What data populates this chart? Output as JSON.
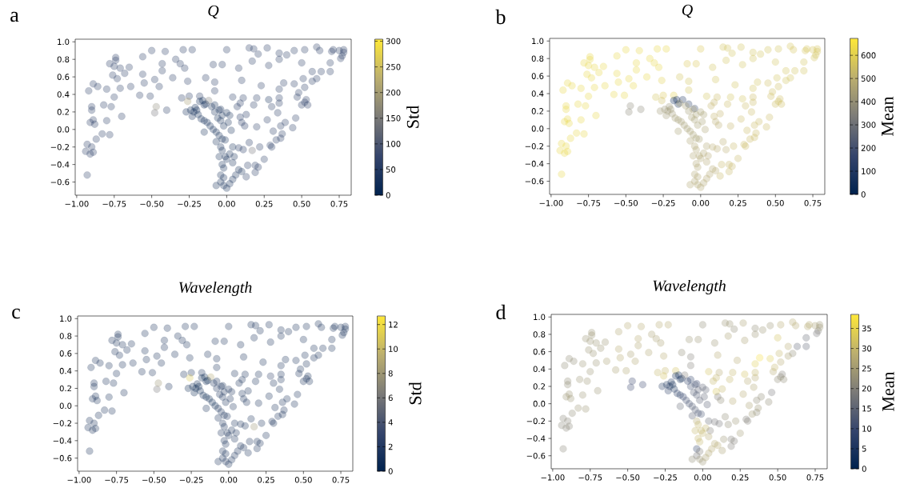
{
  "chart_data": [
    {
      "type": "scatter",
      "title": "Q",
      "annotations": [
        "a"
      ],
      "clabel": "Std",
      "marker": "circle",
      "xlim": [
        -1.01,
        0.83
      ],
      "ylim": [
        -0.75,
        1.03
      ],
      "xticks": [
        {
          "value": -1.0,
          "label": "−1.00"
        },
        {
          "value": -0.75,
          "label": "−0.75"
        },
        {
          "value": -0.5,
          "label": "−0.50"
        },
        {
          "value": -0.25,
          "label": "−0.25"
        },
        {
          "value": 0.0,
          "label": "0.00"
        },
        {
          "value": 0.25,
          "label": "0.25"
        },
        {
          "value": 0.5,
          "label": "0.50"
        },
        {
          "value": 0.75,
          "label": "0.75"
        }
      ],
      "yticks": [
        {
          "value": -0.6,
          "label": "−0.6"
        },
        {
          "value": -0.4,
          "label": "−0.4"
        },
        {
          "value": -0.2,
          "label": "−0.2"
        },
        {
          "value": 0.0,
          "label": "0.0"
        },
        {
          "value": 0.2,
          "label": "0.2"
        },
        {
          "value": 0.4,
          "label": "0.4"
        },
        {
          "value": 0.6,
          "label": "0.6"
        },
        {
          "value": 0.8,
          "label": "0.8"
        },
        {
          "value": 1.0,
          "label": "1.0"
        }
      ],
      "clim": [
        0,
        304
      ],
      "cticks": [
        0,
        50,
        100,
        150,
        200,
        250,
        300
      ],
      "x": [
        -0.93,
        -0.94,
        -0.93,
        -0.91,
        -0.9,
        -0.89,
        -0.87,
        -0.83,
        -0.78,
        -0.91,
        -0.89,
        -0.88,
        -0.8,
        -0.9,
        -0.9,
        -0.82,
        -0.77,
        -0.75,
        -0.7,
        -0.92,
        -0.89,
        -0.86,
        -0.8,
        -0.71,
        -0.64,
        -0.78,
        -0.74,
        -0.74,
        -0.75,
        -0.76,
        -0.73,
        -0.71,
        -0.68,
        -0.65,
        -0.58,
        -0.51,
        -0.48,
        -0.47,
        -0.4,
        -0.45,
        -0.55,
        -0.56,
        -0.48,
        -0.43,
        -0.36,
        -0.56,
        -0.5,
        -0.41,
        -0.34,
        -0.31,
        -0.29,
        -0.23,
        -0.28,
        -0.26,
        -0.43,
        -0.3,
        -0.25,
        -0.26,
        -0.18,
        -0.18,
        -0.16,
        -0.15,
        -0.12,
        -0.08,
        -0.04,
        -0.27,
        -0.24,
        -0.22,
        -0.2,
        -0.19,
        -0.21,
        -0.17,
        -0.15,
        -0.13,
        -0.11,
        -0.09,
        -0.07,
        -0.05,
        -0.03,
        -0.01,
        -0.23,
        -0.14,
        -0.1,
        -0.08,
        -0.05,
        -0.03,
        0,
        0.02,
        -0.06,
        -0.04,
        -0.02,
        0.01,
        0.03,
        -0.15,
        0.04,
        -0.07,
        -0.04,
        -0.03,
        -0.05,
        -0.01,
        0,
        0.02,
        0.05,
        0.04,
        -0.03,
        -0.02,
        -0.04,
        -0.02,
        -0.04,
        -0.07,
        -0.02,
        0,
        0.02,
        0.04,
        0.06,
        0.08,
        0.1,
        -0.08,
        -0.08,
        -0.09,
        -0.03,
        -0.14,
        0,
        0.04,
        0.07,
        0.09,
        0.09,
        0.11,
        0.1,
        0.08,
        0.13,
        0.12,
        0.1,
        0.08,
        0.11,
        0.15,
        0.17,
        0.13,
        0.14,
        0.19,
        0.19,
        0.21,
        0.25,
        0.22,
        0.2,
        0.18,
        0.2,
        0.23,
        0.15,
        0.18,
        0.21,
        0.17,
        0.27,
        0.28,
        0.28,
        0.27,
        0.3,
        0.31,
        0.29,
        0.3,
        0.33,
        0.36,
        0.37,
        0.36,
        0.39,
        0.34,
        0.35,
        0.35,
        0.35,
        0.38,
        0.35,
        0.35,
        0.4,
        0.45,
        0.44,
        0.46,
        0.47,
        0.48,
        0.45,
        0.5,
        0.52,
        0.53,
        0.54,
        0.52,
        0.51,
        0.5,
        0.52,
        0.57,
        0.6,
        0.57,
        0.63,
        0.6,
        0.62,
        0.69,
        0.69,
        0.7,
        0.71,
        0.75,
        0.76,
        0.77,
        0.78,
        0.78
      ],
      "values": [
        -0.52,
        -0.25,
        -0.17,
        -0.28,
        -0.2,
        -0.26,
        -0.11,
        -0.05,
        -0.06,
        0.08,
        0.11,
        0.06,
        0.1,
        0.22,
        0.26,
        0.28,
        0.26,
        0.37,
        0.15,
        0.44,
        0.52,
        0.49,
        0.46,
        0.47,
        0.49,
        0.75,
        0.82,
        0.79,
        0.72,
        0.62,
        0.58,
        0.7,
        0.64,
        0.71,
        0.39,
        0.38,
        0.19,
        0.26,
        0.22,
        0.49,
        0.53,
        0.63,
        0.57,
        0.67,
        0.59,
        0.83,
        0.9,
        0.89,
        0.8,
        0.75,
        0.91,
        0.91,
        0.7,
        0.55,
        0.75,
        0.36,
        0.38,
        0.32,
        0.38,
        0.32,
        0.33,
        0.28,
        0.33,
        0.28,
        0.23,
        0.2,
        0.22,
        0.2,
        0.22,
        0.17,
        0.25,
        0.12,
        0.1,
        0.08,
        0.04,
        0,
        -0.03,
        -0.07,
        -0.11,
        -0.12,
        0.15,
        0.29,
        0.26,
        0.2,
        0.22,
        0.16,
        0.19,
        0.16,
        0.13,
        0.1,
        0.04,
        0.08,
        -0.01,
        -0.03,
        -0.2,
        -0.14,
        -0.2,
        -0.24,
        -0.31,
        -0.31,
        -0.34,
        -0.28,
        -0.31,
        -0.38,
        -0.4,
        -0.44,
        -0.52,
        -0.55,
        -0.6,
        -0.64,
        -0.64,
        -0.67,
        -0.62,
        -0.57,
        -0.52,
        -0.46,
        -0.48,
        0.44,
        0.54,
        0.74,
        0.74,
        0.59,
        0.91,
        0.37,
        0.26,
        0.3,
        0.14,
        0.36,
        0.56,
        0.7,
        0.17,
        0.04,
        0.08,
        -0.21,
        -0.23,
        -0.15,
        -0.24,
        -0.54,
        -0.41,
        -0.41,
        -0.49,
        -0.43,
        -0.34,
        -0.2,
        0.03,
        0.28,
        0.36,
        0.5,
        0.93,
        0.92,
        0.86,
        0.78,
        0.93,
        0.73,
        0.34,
        0.11,
        0.26,
        -0.02,
        -0.18,
        -0.2,
        -0.12,
        -0.1,
        -0.05,
        0.04,
        0.08,
        0.19,
        0.3,
        0.36,
        0.46,
        0.53,
        0.8,
        0.87,
        0.85,
        0.9,
        0.02,
        0.13,
        0.37,
        0.42,
        0.52,
        0.28,
        0.31,
        0.34,
        0.28,
        0.48,
        0.58,
        0.76,
        0.91,
        0.55,
        0.58,
        0.66,
        0.66,
        0.94,
        0.9,
        0.66,
        0.76,
        0.89,
        0.91,
        0.9,
        0.81,
        0.84,
        0.88,
        0.91
      ],
      "cvalues": [
        60,
        60,
        60,
        60,
        60,
        60,
        60,
        60,
        60,
        60,
        60,
        60,
        60,
        60,
        60,
        60,
        60,
        60,
        60,
        60,
        60,
        60,
        60,
        60,
        60,
        60,
        60,
        60,
        60,
        60,
        60,
        60,
        60,
        60,
        60,
        60,
        140,
        170,
        60,
        60,
        60,
        60,
        60,
        60,
        60,
        60,
        60,
        60,
        60,
        60,
        60,
        60,
        60,
        60,
        60,
        60,
        60,
        200,
        60,
        20,
        20,
        30,
        150,
        40,
        40,
        30,
        20,
        20,
        20,
        20,
        20,
        30,
        30,
        30,
        30,
        30,
        40,
        40,
        40,
        40,
        30,
        30,
        40,
        40,
        40,
        40,
        40,
        40,
        40,
        40,
        40,
        40,
        40,
        40,
        40,
        40,
        40,
        40,
        40,
        40,
        40,
        40,
        40,
        40,
        40,
        40,
        40,
        40,
        40,
        40,
        40,
        40,
        40,
        40,
        40,
        40,
        40,
        60,
        60,
        60,
        60,
        60,
        60,
        60,
        50,
        50,
        50,
        60,
        60,
        60,
        50,
        50,
        50,
        50,
        50,
        50,
        140,
        60,
        60,
        60,
        60,
        60,
        60,
        60,
        60,
        60,
        60,
        60,
        60,
        60,
        60,
        60,
        60,
        60,
        30,
        60,
        60,
        60,
        60,
        60,
        60,
        60,
        60,
        60,
        60,
        60,
        60,
        60,
        60,
        60,
        60,
        60,
        60,
        60,
        60,
        60,
        60,
        60,
        60,
        60,
        60,
        60,
        60,
        60,
        60,
        60,
        60,
        60,
        60,
        60,
        60,
        60,
        60,
        60,
        60,
        60,
        60,
        60,
        60,
        60,
        60,
        60
      ]
    },
    {
      "type": "scatter",
      "title": "Q",
      "annotations": [
        "b"
      ],
      "clabel": "Mean",
      "marker": "circle",
      "xlim": [
        -1.01,
        0.83
      ],
      "ylim": [
        -0.75,
        1.03
      ],
      "xticks": [
        {
          "value": -1.0,
          "label": "−1.00"
        },
        {
          "value": -0.75,
          "label": "−0.75"
        },
        {
          "value": -0.5,
          "label": "−0.50"
        },
        {
          "value": -0.25,
          "label": "−0.25"
        },
        {
          "value": 0.0,
          "label": "0.00"
        },
        {
          "value": 0.25,
          "label": "0.25"
        },
        {
          "value": 0.5,
          "label": "0.50"
        },
        {
          "value": 0.75,
          "label": "0.75"
        }
      ],
      "yticks": [
        {
          "value": -0.6,
          "label": "−0.6"
        },
        {
          "value": -0.4,
          "label": "−0.4"
        },
        {
          "value": -0.2,
          "label": "−0.2"
        },
        {
          "value": 0.0,
          "label": "0.0"
        },
        {
          "value": 0.2,
          "label": "0.2"
        },
        {
          "value": 0.4,
          "label": "0.4"
        },
        {
          "value": 0.6,
          "label": "0.6"
        },
        {
          "value": 0.8,
          "label": "0.8"
        },
        {
          "value": 1.0,
          "label": "1.0"
        }
      ],
      "clim": [
        0,
        673
      ],
      "cticks": [
        0,
        100,
        200,
        300,
        400,
        500,
        600
      ],
      "x": [
        -0.93,
        -0.94,
        -0.93,
        -0.91,
        -0.9,
        -0.89,
        -0.87,
        -0.83,
        -0.78,
        -0.91,
        -0.89,
        -0.88,
        -0.8,
        -0.9,
        -0.9,
        -0.82,
        -0.77,
        -0.75,
        -0.7,
        -0.92,
        -0.89,
        -0.86,
        -0.8,
        -0.71,
        -0.64,
        -0.78,
        -0.74,
        -0.74,
        -0.75,
        -0.76,
        -0.73,
        -0.71,
        -0.68,
        -0.65,
        -0.58,
        -0.51,
        -0.48,
        -0.47,
        -0.4,
        -0.45,
        -0.55,
        -0.56,
        -0.48,
        -0.43,
        -0.36,
        -0.56,
        -0.5,
        -0.41,
        -0.34,
        -0.31,
        -0.29,
        -0.23,
        -0.28,
        -0.26,
        -0.43,
        -0.3,
        -0.25,
        -0.26,
        -0.18,
        -0.18,
        -0.16,
        -0.15,
        -0.12,
        -0.08,
        -0.04,
        -0.27,
        -0.24,
        -0.22,
        -0.2,
        -0.19,
        -0.21,
        -0.17,
        -0.15,
        -0.13,
        -0.11,
        -0.09,
        -0.07,
        -0.05,
        -0.03,
        -0.01,
        -0.23,
        -0.14,
        -0.1,
        -0.08,
        -0.05,
        -0.03,
        0,
        0.02,
        -0.06,
        -0.04,
        -0.02,
        0.01,
        0.03,
        -0.15,
        0.04,
        -0.07,
        -0.04,
        -0.03,
        -0.05,
        -0.01,
        0,
        0.02,
        0.05,
        0.04,
        -0.03,
        -0.02,
        -0.04,
        -0.02,
        -0.04,
        -0.07,
        -0.02,
        0,
        0.02,
        0.04,
        0.06,
        0.08,
        0.1,
        -0.08,
        -0.08,
        -0.09,
        -0.03,
        -0.14,
        0,
        0.04,
        0.07,
        0.09,
        0.09,
        0.11,
        0.1,
        0.08,
        0.13,
        0.12,
        0.1,
        0.08,
        0.11,
        0.15,
        0.17,
        0.13,
        0.14,
        0.19,
        0.19,
        0.21,
        0.25,
        0.22,
        0.2,
        0.18,
        0.2,
        0.23,
        0.15,
        0.18,
        0.21,
        0.17,
        0.27,
        0.28,
        0.28,
        0.27,
        0.3,
        0.31,
        0.29,
        0.3,
        0.33,
        0.36,
        0.37,
        0.36,
        0.39,
        0.34,
        0.35,
        0.35,
        0.35,
        0.38,
        0.35,
        0.35,
        0.4,
        0.45,
        0.44,
        0.46,
        0.47,
        0.48,
        0.45,
        0.5,
        0.52,
        0.53,
        0.54,
        0.52,
        0.51,
        0.5,
        0.52,
        0.57,
        0.6,
        0.57,
        0.63,
        0.6,
        0.62,
        0.69,
        0.69,
        0.7,
        0.71,
        0.75,
        0.76,
        0.77,
        0.78,
        0.78
      ],
      "values": [
        -0.52,
        -0.25,
        -0.17,
        -0.28,
        -0.2,
        -0.26,
        -0.11,
        -0.05,
        -0.06,
        0.08,
        0.11,
        0.06,
        0.1,
        0.22,
        0.26,
        0.28,
        0.26,
        0.37,
        0.15,
        0.44,
        0.52,
        0.49,
        0.46,
        0.47,
        0.49,
        0.75,
        0.82,
        0.79,
        0.72,
        0.62,
        0.58,
        0.7,
        0.64,
        0.71,
        0.39,
        0.38,
        0.19,
        0.26,
        0.22,
        0.49,
        0.53,
        0.63,
        0.57,
        0.67,
        0.59,
        0.83,
        0.9,
        0.89,
        0.8,
        0.75,
        0.91,
        0.91,
        0.7,
        0.55,
        0.75,
        0.36,
        0.38,
        0.32,
        0.38,
        0.32,
        0.33,
        0.28,
        0.33,
        0.28,
        0.23,
        0.2,
        0.22,
        0.2,
        0.22,
        0.17,
        0.25,
        0.12,
        0.1,
        0.08,
        0.04,
        0,
        -0.03,
        -0.07,
        -0.11,
        -0.12,
        0.15,
        0.29,
        0.26,
        0.2,
        0.22,
        0.16,
        0.19,
        0.16,
        0.13,
        0.1,
        0.04,
        0.08,
        -0.01,
        -0.03,
        -0.2,
        -0.14,
        -0.2,
        -0.24,
        -0.31,
        -0.31,
        -0.34,
        -0.28,
        -0.31,
        -0.38,
        -0.4,
        -0.44,
        -0.52,
        -0.55,
        -0.6,
        -0.64,
        -0.64,
        -0.67,
        -0.62,
        -0.57,
        -0.52,
        -0.46,
        -0.48,
        0.44,
        0.54,
        0.74,
        0.74,
        0.59,
        0.91,
        0.37,
        0.26,
        0.3,
        0.14,
        0.36,
        0.56,
        0.7,
        0.17,
        0.04,
        0.08,
        -0.21,
        -0.23,
        -0.15,
        -0.24,
        -0.54,
        -0.41,
        -0.41,
        -0.49,
        -0.43,
        -0.34,
        -0.2,
        0.03,
        0.28,
        0.36,
        0.5,
        0.93,
        0.92,
        0.86,
        0.78,
        0.93,
        0.73,
        0.34,
        0.11,
        0.26,
        -0.02,
        -0.18,
        -0.2,
        -0.12,
        -0.1,
        -0.05,
        0.04,
        0.08,
        0.19,
        0.3,
        0.36,
        0.46,
        0.53,
        0.8,
        0.87,
        0.85,
        0.9,
        0.02,
        0.13,
        0.37,
        0.42,
        0.52,
        0.28,
        0.31,
        0.34,
        0.28,
        0.48,
        0.58,
        0.76,
        0.91,
        0.55,
        0.58,
        0.66,
        0.66,
        0.94,
        0.9,
        0.66,
        0.76,
        0.89,
        0.91,
        0.9,
        0.81,
        0.84,
        0.88,
        0.91
      ],
      "cvalues": [
        620,
        620,
        620,
        620,
        620,
        620,
        620,
        620,
        620,
        620,
        620,
        620,
        620,
        620,
        620,
        620,
        620,
        620,
        620,
        620,
        620,
        620,
        620,
        620,
        620,
        620,
        620,
        620,
        620,
        620,
        620,
        620,
        620,
        620,
        620,
        620,
        380,
        380,
        380,
        620,
        620,
        620,
        620,
        620,
        620,
        620,
        620,
        620,
        620,
        620,
        620,
        620,
        620,
        600,
        620,
        560,
        580,
        550,
        600,
        30,
        20,
        60,
        80,
        120,
        150,
        430,
        420,
        420,
        420,
        430,
        420,
        440,
        440,
        440,
        440,
        440,
        450,
        450,
        450,
        450,
        430,
        440,
        440,
        440,
        440,
        450,
        450,
        450,
        450,
        450,
        450,
        450,
        460,
        450,
        470,
        460,
        470,
        470,
        470,
        470,
        470,
        470,
        480,
        480,
        470,
        470,
        470,
        470,
        470,
        470,
        470,
        470,
        470,
        480,
        480,
        490,
        490,
        560,
        560,
        580,
        580,
        560,
        580,
        560,
        520,
        520,
        520,
        540,
        560,
        560,
        520,
        500,
        500,
        500,
        500,
        500,
        500,
        530,
        530,
        530,
        530,
        530,
        530,
        530,
        520,
        540,
        560,
        560,
        560,
        560,
        560,
        560,
        560,
        560,
        560,
        540,
        540,
        540,
        540,
        540,
        540,
        540,
        540,
        540,
        540,
        540,
        540,
        540,
        560,
        560,
        560,
        560,
        560,
        560,
        540,
        540,
        550,
        550,
        550,
        550,
        550,
        550,
        550,
        550,
        560,
        560,
        560,
        560,
        560,
        560,
        560,
        570,
        570,
        560,
        560,
        570,
        570,
        570,
        560,
        560,
        570,
        570
      ]
    },
    {
      "type": "scatter",
      "title": "Wavelength",
      "annotations": [
        "c"
      ],
      "clabel": "Std",
      "marker": "circle",
      "xlim": [
        -1.01,
        0.83
      ],
      "ylim": [
        -0.75,
        1.03
      ],
      "xticks": [
        {
          "value": -1.0,
          "label": "−1.00"
        },
        {
          "value": -0.75,
          "label": "−0.75"
        },
        {
          "value": -0.5,
          "label": "−0.50"
        },
        {
          "value": -0.25,
          "label": "−0.25"
        },
        {
          "value": 0.0,
          "label": "0.00"
        },
        {
          "value": 0.25,
          "label": "0.25"
        },
        {
          "value": 0.5,
          "label": "0.50"
        },
        {
          "value": 0.75,
          "label": "0.75"
        }
      ],
      "yticks": [
        {
          "value": -0.6,
          "label": "−0.6"
        },
        {
          "value": -0.4,
          "label": "−0.4"
        },
        {
          "value": -0.2,
          "label": "−0.2"
        },
        {
          "value": 0.0,
          "label": "0.0"
        },
        {
          "value": 0.2,
          "label": "0.2"
        },
        {
          "value": 0.4,
          "label": "0.4"
        },
        {
          "value": 0.6,
          "label": "0.6"
        },
        {
          "value": 0.8,
          "label": "0.8"
        },
        {
          "value": 1.0,
          "label": "1.0"
        }
      ],
      "clim": [
        0,
        12.7
      ],
      "cticks": [
        0,
        2,
        4,
        6,
        8,
        10,
        12
      ],
      "x": [
        -0.93,
        -0.94,
        -0.93,
        -0.91,
        -0.9,
        -0.89,
        -0.87,
        -0.83,
        -0.78,
        -0.91,
        -0.89,
        -0.88,
        -0.8,
        -0.9,
        -0.9,
        -0.82,
        -0.77,
        -0.75,
        -0.7,
        -0.92,
        -0.89,
        -0.86,
        -0.8,
        -0.71,
        -0.64,
        -0.78,
        -0.74,
        -0.74,
        -0.75,
        -0.76,
        -0.73,
        -0.71,
        -0.68,
        -0.65,
        -0.58,
        -0.51,
        -0.48,
        -0.47,
        -0.4,
        -0.45,
        -0.55,
        -0.56,
        -0.48,
        -0.43,
        -0.36,
        -0.56,
        -0.5,
        -0.41,
        -0.34,
        -0.31,
        -0.29,
        -0.23,
        -0.28,
        -0.26,
        -0.43,
        -0.3,
        -0.25,
        -0.26,
        -0.18,
        -0.18,
        -0.16,
        -0.15,
        -0.12,
        -0.08,
        -0.04,
        -0.27,
        -0.24,
        -0.22,
        -0.2,
        -0.19,
        -0.21,
        -0.17,
        -0.15,
        -0.13,
        -0.11,
        -0.09,
        -0.07,
        -0.05,
        -0.03,
        -0.01,
        -0.23,
        -0.14,
        -0.1,
        -0.08,
        -0.05,
        -0.03,
        0,
        0.02,
        -0.06,
        -0.04,
        -0.02,
        0.01,
        0.03,
        -0.15,
        0.04,
        -0.07,
        -0.04,
        -0.03,
        -0.05,
        -0.01,
        0,
        0.02,
        0.05,
        0.04,
        -0.03,
        -0.02,
        -0.04,
        -0.02,
        -0.04,
        -0.07,
        -0.02,
        0,
        0.02,
        0.04,
        0.06,
        0.08,
        0.1,
        -0.08,
        -0.08,
        -0.09,
        -0.03,
        -0.14,
        0,
        0.04,
        0.07,
        0.09,
        0.09,
        0.11,
        0.1,
        0.08,
        0.13,
        0.12,
        0.1,
        0.08,
        0.11,
        0.15,
        0.17,
        0.13,
        0.14,
        0.19,
        0.19,
        0.21,
        0.25,
        0.22,
        0.2,
        0.18,
        0.2,
        0.23,
        0.15,
        0.18,
        0.21,
        0.17,
        0.27,
        0.28,
        0.28,
        0.27,
        0.3,
        0.31,
        0.29,
        0.3,
        0.33,
        0.36,
        0.37,
        0.36,
        0.39,
        0.34,
        0.35,
        0.35,
        0.35,
        0.38,
        0.35,
        0.35,
        0.4,
        0.45,
        0.44,
        0.46,
        0.47,
        0.48,
        0.45,
        0.5,
        0.52,
        0.53,
        0.54,
        0.52,
        0.51,
        0.5,
        0.52,
        0.57,
        0.6,
        0.57,
        0.63,
        0.6,
        0.62,
        0.69,
        0.69,
        0.7,
        0.71,
        0.75,
        0.76,
        0.77,
        0.78,
        0.78
      ],
      "values": [
        -0.52,
        -0.25,
        -0.17,
        -0.28,
        -0.2,
        -0.26,
        -0.11,
        -0.05,
        -0.06,
        0.08,
        0.11,
        0.06,
        0.1,
        0.22,
        0.26,
        0.28,
        0.26,
        0.37,
        0.15,
        0.44,
        0.52,
        0.49,
        0.46,
        0.47,
        0.49,
        0.75,
        0.82,
        0.79,
        0.72,
        0.62,
        0.58,
        0.7,
        0.64,
        0.71,
        0.39,
        0.38,
        0.19,
        0.26,
        0.22,
        0.49,
        0.53,
        0.63,
        0.57,
        0.67,
        0.59,
        0.83,
        0.9,
        0.89,
        0.8,
        0.75,
        0.91,
        0.91,
        0.7,
        0.55,
        0.75,
        0.36,
        0.38,
        0.32,
        0.38,
        0.32,
        0.33,
        0.28,
        0.33,
        0.28,
        0.23,
        0.2,
        0.22,
        0.2,
        0.22,
        0.17,
        0.25,
        0.12,
        0.1,
        0.08,
        0.04,
        0,
        -0.03,
        -0.07,
        -0.11,
        -0.12,
        0.15,
        0.29,
        0.26,
        0.2,
        0.22,
        0.16,
        0.19,
        0.16,
        0.13,
        0.1,
        0.04,
        0.08,
        -0.01,
        -0.03,
        -0.2,
        -0.14,
        -0.2,
        -0.24,
        -0.31,
        -0.31,
        -0.34,
        -0.28,
        -0.31,
        -0.38,
        -0.4,
        -0.44,
        -0.52,
        -0.55,
        -0.6,
        -0.64,
        -0.64,
        -0.67,
        -0.62,
        -0.57,
        -0.52,
        -0.46,
        -0.48,
        0.44,
        0.54,
        0.74,
        0.74,
        0.59,
        0.91,
        0.37,
        0.26,
        0.3,
        0.14,
        0.36,
        0.56,
        0.7,
        0.17,
        0.04,
        0.08,
        -0.21,
        -0.23,
        -0.15,
        -0.24,
        -0.54,
        -0.41,
        -0.41,
        -0.49,
        -0.43,
        -0.34,
        -0.2,
        0.03,
        0.28,
        0.36,
        0.5,
        0.93,
        0.92,
        0.86,
        0.78,
        0.93,
        0.73,
        0.34,
        0.11,
        0.26,
        -0.02,
        -0.18,
        -0.2,
        -0.12,
        -0.1,
        -0.05,
        0.04,
        0.08,
        0.19,
        0.3,
        0.36,
        0.46,
        0.53,
        0.8,
        0.87,
        0.85,
        0.9,
        0.02,
        0.13,
        0.37,
        0.42,
        0.52,
        0.28,
        0.31,
        0.34,
        0.28,
        0.48,
        0.58,
        0.76,
        0.91,
        0.55,
        0.58,
        0.66,
        0.66,
        0.94,
        0.9,
        0.66,
        0.76,
        0.89,
        0.91,
        0.9,
        0.81,
        0.84,
        0.88,
        0.91
      ],
      "cvalues": [
        2,
        2,
        2,
        2,
        2,
        2,
        2,
        2,
        2,
        2,
        2,
        2,
        2,
        2,
        2,
        2,
        2,
        2,
        2,
        2,
        2,
        2,
        2,
        2,
        2,
        2,
        2,
        2,
        2,
        2,
        2,
        2,
        2,
        2,
        2,
        2,
        6,
        8,
        2,
        2,
        2,
        2,
        2,
        2,
        2,
        2,
        2,
        2,
        2,
        2,
        2,
        2,
        2,
        2,
        2,
        2,
        2,
        11,
        2,
        1,
        1,
        1,
        9,
        2,
        2,
        1,
        1,
        1,
        1,
        1,
        1,
        1,
        1,
        1,
        1,
        1,
        2,
        2,
        2,
        2,
        1,
        1,
        2,
        2,
        2,
        2,
        2,
        2,
        2,
        2,
        2,
        2,
        2,
        2,
        2,
        2,
        2,
        2,
        2,
        2,
        2,
        2,
        2,
        2,
        2,
        2,
        2,
        2,
        2,
        2,
        2,
        2,
        2,
        2,
        2,
        2,
        2,
        2,
        2,
        2,
        2,
        2,
        2,
        2,
        2,
        2,
        2,
        2,
        2,
        2,
        2,
        2,
        2,
        2,
        2,
        2,
        8,
        2,
        2,
        2,
        2,
        2,
        2,
        2,
        2,
        2,
        2,
        2,
        2,
        2,
        2,
        2,
        2,
        2,
        3,
        2,
        2,
        2,
        2,
        2,
        2,
        2,
        2,
        2,
        2,
        2,
        2,
        2,
        2,
        2,
        2,
        2,
        2,
        2,
        2,
        2,
        2,
        2,
        2,
        2,
        2,
        2,
        2,
        2,
        2,
        2,
        2,
        2,
        2,
        2,
        2,
        2,
        2,
        2,
        2,
        2,
        2,
        2,
        2,
        2,
        2,
        2
      ]
    },
    {
      "type": "scatter",
      "title": "Wavelength",
      "annotations": [
        "d"
      ],
      "clabel": "Mean",
      "marker": "circle",
      "xlim": [
        -1.01,
        0.83
      ],
      "ylim": [
        -0.75,
        1.03
      ],
      "xticks": [
        {
          "value": -1.0,
          "label": "−1.00"
        },
        {
          "value": -0.75,
          "label": "−0.75"
        },
        {
          "value": -0.5,
          "label": "−0.50"
        },
        {
          "value": -0.25,
          "label": "−0.25"
        },
        {
          "value": 0.0,
          "label": "0.00"
        },
        {
          "value": 0.25,
          "label": "0.25"
        },
        {
          "value": 0.5,
          "label": "0.50"
        },
        {
          "value": 0.75,
          "label": "0.75"
        }
      ],
      "yticks": [
        {
          "value": -0.6,
          "label": "−0.6"
        },
        {
          "value": -0.4,
          "label": "−0.4"
        },
        {
          "value": -0.2,
          "label": "−0.2"
        },
        {
          "value": 0.0,
          "label": "0.0"
        },
        {
          "value": 0.2,
          "label": "0.2"
        },
        {
          "value": 0.4,
          "label": "0.4"
        },
        {
          "value": 0.6,
          "label": "0.6"
        },
        {
          "value": 0.8,
          "label": "0.8"
        },
        {
          "value": 1.0,
          "label": "1.0"
        }
      ],
      "clim": [
        0,
        38.5
      ],
      "cticks": [
        0,
        5,
        10,
        15,
        20,
        25,
        30,
        35
      ],
      "x": [
        -0.93,
        -0.94,
        -0.93,
        -0.91,
        -0.9,
        -0.89,
        -0.87,
        -0.83,
        -0.78,
        -0.91,
        -0.89,
        -0.88,
        -0.8,
        -0.9,
        -0.9,
        -0.82,
        -0.77,
        -0.75,
        -0.7,
        -0.92,
        -0.89,
        -0.86,
        -0.8,
        -0.71,
        -0.64,
        -0.78,
        -0.74,
        -0.74,
        -0.75,
        -0.76,
        -0.73,
        -0.71,
        -0.68,
        -0.65,
        -0.58,
        -0.51,
        -0.48,
        -0.47,
        -0.4,
        -0.45,
        -0.55,
        -0.56,
        -0.48,
        -0.43,
        -0.36,
        -0.56,
        -0.5,
        -0.41,
        -0.34,
        -0.31,
        -0.29,
        -0.23,
        -0.28,
        -0.26,
        -0.43,
        -0.3,
        -0.25,
        -0.26,
        -0.18,
        -0.18,
        -0.16,
        -0.15,
        -0.12,
        -0.08,
        -0.04,
        -0.27,
        -0.24,
        -0.22,
        -0.2,
        -0.19,
        -0.21,
        -0.17,
        -0.15,
        -0.13,
        -0.11,
        -0.09,
        -0.07,
        -0.05,
        -0.03,
        -0.01,
        -0.23,
        -0.14,
        -0.1,
        -0.08,
        -0.05,
        -0.03,
        0,
        0.02,
        -0.06,
        -0.04,
        -0.02,
        0.01,
        0.03,
        -0.15,
        0.04,
        -0.07,
        -0.04,
        -0.03,
        -0.05,
        -0.01,
        0,
        0.02,
        0.05,
        0.04,
        -0.03,
        -0.02,
        -0.04,
        -0.02,
        -0.04,
        -0.07,
        -0.02,
        0,
        0.02,
        0.04,
        0.06,
        0.08,
        0.1,
        -0.08,
        -0.08,
        -0.09,
        -0.03,
        -0.14,
        0,
        0.04,
        0.07,
        0.09,
        0.09,
        0.11,
        0.1,
        0.08,
        0.13,
        0.12,
        0.1,
        0.08,
        0.11,
        0.15,
        0.17,
        0.13,
        0.14,
        0.19,
        0.19,
        0.21,
        0.25,
        0.22,
        0.2,
        0.18,
        0.2,
        0.23,
        0.15,
        0.18,
        0.21,
        0.17,
        0.27,
        0.28,
        0.28,
        0.27,
        0.3,
        0.31,
        0.29,
        0.3,
        0.33,
        0.36,
        0.37,
        0.36,
        0.39,
        0.34,
        0.35,
        0.35,
        0.35,
        0.38,
        0.35,
        0.35,
        0.4,
        0.45,
        0.44,
        0.46,
        0.47,
        0.48,
        0.45,
        0.5,
        0.52,
        0.53,
        0.54,
        0.52,
        0.51,
        0.5,
        0.52,
        0.57,
        0.6,
        0.57,
        0.63,
        0.6,
        0.62,
        0.69,
        0.69,
        0.7,
        0.71,
        0.75,
        0.76,
        0.77,
        0.78,
        0.78
      ],
      "values": [
        -0.52,
        -0.25,
        -0.17,
        -0.28,
        -0.2,
        -0.26,
        -0.11,
        -0.05,
        -0.06,
        0.08,
        0.11,
        0.06,
        0.1,
        0.22,
        0.26,
        0.28,
        0.26,
        0.37,
        0.15,
        0.44,
        0.52,
        0.49,
        0.46,
        0.47,
        0.49,
        0.75,
        0.82,
        0.79,
        0.72,
        0.62,
        0.58,
        0.7,
        0.64,
        0.71,
        0.39,
        0.38,
        0.19,
        0.26,
        0.22,
        0.49,
        0.53,
        0.63,
        0.57,
        0.67,
        0.59,
        0.83,
        0.9,
        0.89,
        0.8,
        0.75,
        0.91,
        0.91,
        0.7,
        0.55,
        0.75,
        0.36,
        0.38,
        0.32,
        0.38,
        0.32,
        0.33,
        0.28,
        0.33,
        0.28,
        0.23,
        0.2,
        0.22,
        0.2,
        0.22,
        0.17,
        0.25,
        0.12,
        0.1,
        0.08,
        0.04,
        0,
        -0.03,
        -0.07,
        -0.11,
        -0.12,
        0.15,
        0.29,
        0.26,
        0.2,
        0.22,
        0.16,
        0.19,
        0.16,
        0.13,
        0.1,
        0.04,
        0.08,
        -0.01,
        -0.03,
        -0.2,
        -0.14,
        -0.2,
        -0.24,
        -0.31,
        -0.31,
        -0.34,
        -0.28,
        -0.31,
        -0.38,
        -0.4,
        -0.44,
        -0.52,
        -0.55,
        -0.6,
        -0.64,
        -0.64,
        -0.67,
        -0.62,
        -0.57,
        -0.52,
        -0.46,
        -0.48,
        0.44,
        0.54,
        0.74,
        0.74,
        0.59,
        0.91,
        0.37,
        0.26,
        0.3,
        0.14,
        0.36,
        0.56,
        0.7,
        0.17,
        0.04,
        0.08,
        -0.21,
        -0.23,
        -0.15,
        -0.24,
        -0.54,
        -0.41,
        -0.41,
        -0.49,
        -0.43,
        -0.34,
        -0.2,
        0.03,
        0.28,
        0.36,
        0.5,
        0.93,
        0.92,
        0.86,
        0.78,
        0.93,
        0.73,
        0.34,
        0.11,
        0.26,
        -0.02,
        -0.18,
        -0.2,
        -0.12,
        -0.1,
        -0.05,
        0.04,
        0.08,
        0.19,
        0.3,
        0.36,
        0.46,
        0.53,
        0.8,
        0.87,
        0.85,
        0.9,
        0.02,
        0.13,
        0.37,
        0.42,
        0.52,
        0.28,
        0.31,
        0.34,
        0.28,
        0.48,
        0.58,
        0.76,
        0.91,
        0.55,
        0.58,
        0.66,
        0.66,
        0.94,
        0.9,
        0.66,
        0.76,
        0.89,
        0.91,
        0.9,
        0.81,
        0.84,
        0.88,
        0.91
      ],
      "cvalues": [
        21,
        21,
        21,
        21,
        21,
        21,
        22,
        24,
        24,
        24,
        24,
        24,
        24,
        22,
        22,
        24,
        24,
        24,
        24,
        22,
        22,
        22,
        24,
        24,
        26,
        24,
        24,
        24,
        24,
        24,
        24,
        24,
        24,
        24,
        26,
        27,
        10,
        10,
        10,
        27,
        28,
        28,
        26,
        27,
        27,
        27,
        28,
        28,
        26,
        26,
        28,
        28,
        26,
        28,
        28,
        30,
        30,
        32,
        32,
        2,
        2,
        3,
        20,
        8,
        10,
        6,
        5,
        4,
        4,
        5,
        4,
        7,
        8,
        9,
        11,
        12,
        13,
        13,
        12,
        12,
        7,
        6,
        8,
        11,
        12,
        14,
        14,
        15,
        13,
        13,
        14,
        15,
        14,
        16,
        16,
        14,
        28,
        30,
        30,
        30,
        30,
        30,
        20,
        28,
        30,
        30,
        8,
        20,
        18,
        22,
        24,
        24,
        26,
        27,
        28,
        28,
        28,
        20,
        20,
        24,
        24,
        22,
        22,
        32,
        30,
        30,
        33,
        28,
        28,
        24,
        30,
        22,
        20,
        18,
        18,
        22,
        22,
        26,
        24,
        20,
        20,
        20,
        25,
        24,
        28,
        30,
        30,
        28,
        24,
        24,
        22,
        26,
        26,
        26,
        32,
        28,
        28,
        26,
        20,
        20,
        25,
        22,
        24,
        22,
        22,
        27,
        28,
        30,
        34,
        37,
        24,
        22,
        24,
        24,
        22,
        18,
        28,
        30,
        34,
        22,
        22,
        20,
        22,
        28,
        30,
        32,
        28,
        26,
        22,
        28,
        15,
        28,
        28,
        15,
        16,
        28,
        28,
        26,
        18,
        20,
        24,
        24
      ]
    }
  ]
}
